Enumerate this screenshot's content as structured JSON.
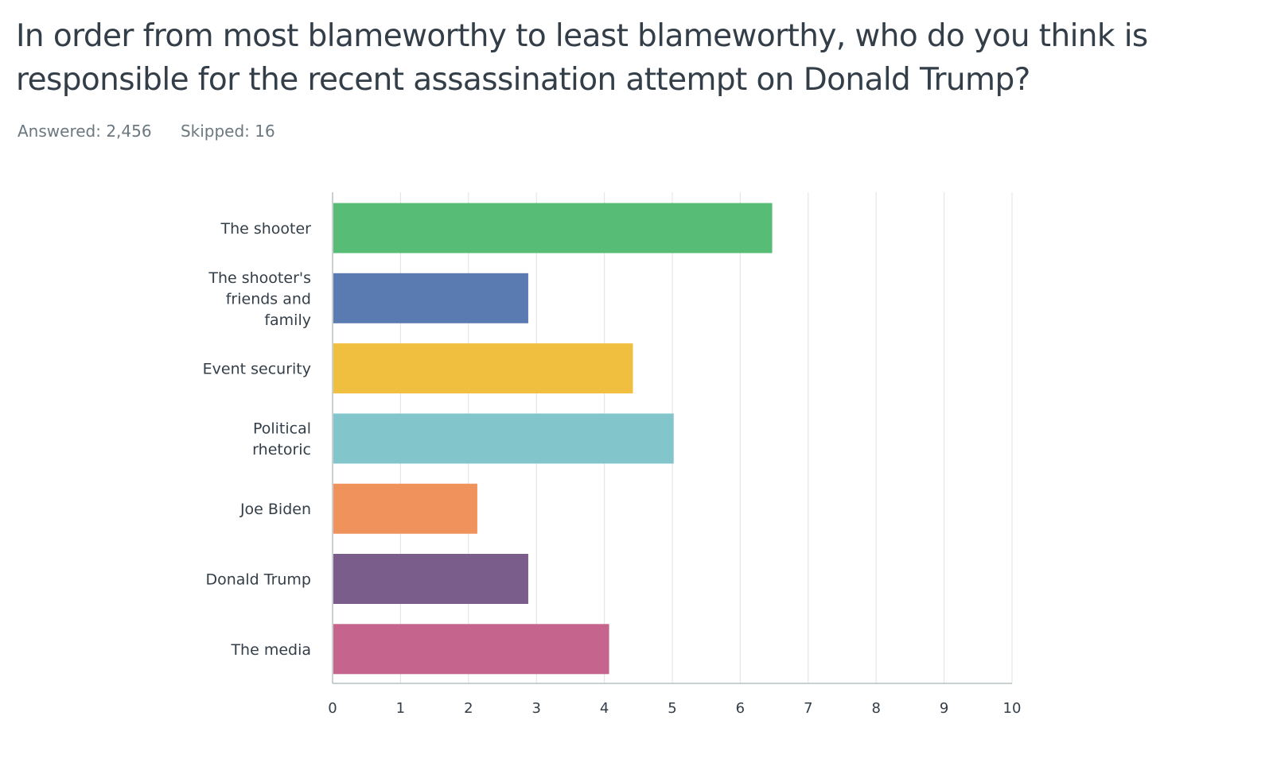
{
  "question": {
    "title": "In order from most blameworthy to least blameworthy, who do you think is responsible for the recent assassination attempt on Donald Trump?"
  },
  "stats": {
    "answered_label": "Answered: 2,456",
    "skipped_label": "Skipped: 16"
  },
  "chart_data": {
    "type": "bar",
    "orientation": "horizontal",
    "title": "",
    "xlabel": "",
    "ylabel": "",
    "xlim": [
      0,
      10
    ],
    "ticks": [
      "0",
      "1",
      "2",
      "3",
      "4",
      "5",
      "6",
      "7",
      "8",
      "9",
      "10"
    ],
    "grid": true,
    "categories": [
      [
        "The shooter"
      ],
      [
        "The shooter's",
        "friends and",
        "family"
      ],
      [
        "Event security"
      ],
      [
        "Political",
        "rhetoric"
      ],
      [
        "Joe Biden"
      ],
      [
        "Donald Trump"
      ],
      [
        "The media"
      ]
    ],
    "values": [
      6.47,
      2.88,
      4.42,
      5.02,
      2.13,
      2.88,
      4.07
    ],
    "colors": [
      "#57bc75",
      "#5a7ab2",
      "#f0bf40",
      "#82c6cc",
      "#f0925c",
      "#7b5d8c",
      "#c5648d"
    ]
  }
}
